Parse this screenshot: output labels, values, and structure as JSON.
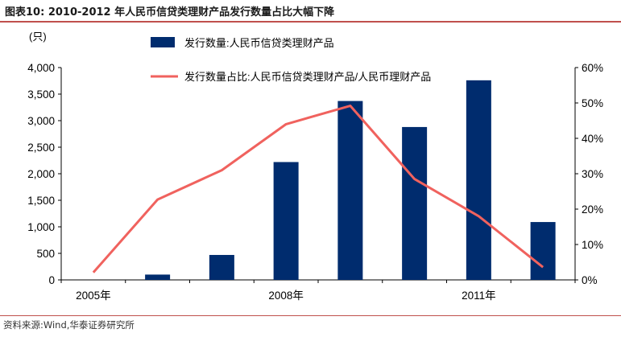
{
  "header": {
    "title": "图表10:  2010-2012 年人民币信贷类理财产品发行数量占比大幅下降"
  },
  "footer": {
    "source": "资料来源:Wind,华泰证券研究所"
  },
  "chart_data": {
    "type": "bar",
    "categories": [
      "2005年",
      "",
      "",
      "2008年",
      "",
      "",
      "2011年",
      ""
    ],
    "y_left_unit": "(只)",
    "ylim_left": [
      0,
      4000
    ],
    "yticks_left": [
      "0",
      "500",
      "1,000",
      "1,500",
      "2,000",
      "2,500",
      "3,000",
      "3,500",
      "4,000"
    ],
    "ylim_right": [
      0,
      60
    ],
    "yticks_right": [
      "0%",
      "10%",
      "20%",
      "30%",
      "40%",
      "50%",
      "60%"
    ],
    "series": [
      {
        "name": "发行数量:人民币信贷类理财产品",
        "type": "bar",
        "axis": "left",
        "color": "#002c6e",
        "values": [
          0,
          100,
          470,
          2220,
          3370,
          2880,
          3760,
          1090
        ]
      },
      {
        "name": "发行数量占比:人民币信贷类理财产品/人民币理财产品",
        "type": "line",
        "axis": "right",
        "color": "#f0625e",
        "values": [
          2.1,
          22.7,
          31.0,
          44.0,
          49.2,
          28.5,
          18.0,
          3.6
        ]
      }
    ],
    "legend_position": "top",
    "grid": false
  }
}
